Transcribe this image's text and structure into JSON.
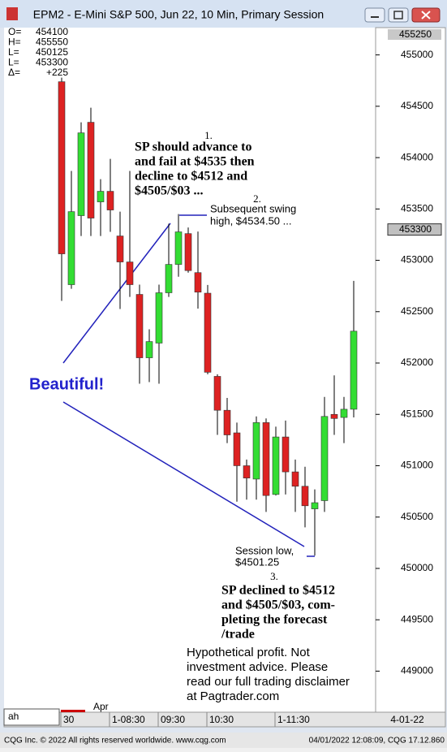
{
  "window": {
    "title": "EPM2 - E-Mini S&P 500, Jun 22, 10 Min, Primary Session"
  },
  "chart_data": {
    "type": "candlestick",
    "categories": [
      "30",
      null,
      null,
      null,
      null,
      "1-08:30",
      null,
      null,
      null,
      null,
      "09:30",
      null,
      null,
      null,
      null,
      "10:30",
      null,
      null,
      null,
      null,
      null,
      null,
      "1-11:30",
      null,
      null,
      null,
      null,
      null,
      null,
      null,
      null
    ],
    "open": [
      454739,
      452763,
      453435,
      454344,
      453569,
      453672,
      453237,
      452984,
      452668,
      452051,
      452194,
      452684,
      452960,
      453260,
      452880,
      452680,
      451870,
      451540,
      451320,
      451000,
      450870,
      451420,
      450720,
      451280,
      450940,
      450800,
      450580,
      450660,
      451500,
      451470,
      451550
    ],
    "high": [
      454779,
      453870,
      454344,
      454486,
      453790,
      453988,
      453474,
      453870,
      452763,
      452328,
      452763,
      453356,
      453450,
      453320,
      453280,
      452760,
      451890,
      451660,
      451420,
      451060,
      451480,
      451460,
      451380,
      451440,
      451060,
      450990,
      450770,
      451670,
      451880,
      451670,
      452800
    ],
    "low": [
      452605,
      452723,
      453237,
      453237,
      453237,
      453277,
      452526,
      452644,
      451798,
      451814,
      451798,
      452644,
      452840,
      452880,
      452530,
      451890,
      451300,
      451220,
      450650,
      450670,
      450670,
      450550,
      450710,
      450720,
      450550,
      450400,
      450125,
      450550,
      451300,
      451220,
      451470
    ],
    "close": [
      453063,
      453474,
      454241,
      453411,
      453672,
      453490,
      452984,
      452763,
      452051,
      452209,
      452684,
      452960,
      453277,
      452900,
      452690,
      451910,
      451540,
      451300,
      451000,
      450880,
      451420,
      450710,
      451280,
      450940,
      450800,
      450610,
      450640,
      451480,
      451460,
      451550,
      452310
    ],
    "up_color": "#33dd33",
    "down_color": "#dd2222",
    "ylim": [
      448600,
      455250
    ],
    "yticks": [
      449000,
      449500,
      450000,
      450500,
      451000,
      451500,
      452000,
      452500,
      453000,
      453500,
      454000,
      454500,
      455000
    ],
    "y_top_label": 455250,
    "last_price": 453300,
    "x_secondary_label": "Apr",
    "x_end_label": "4-01-22",
    "readout": [
      [
        "O=",
        "454100"
      ],
      [
        "H=",
        "455550"
      ],
      [
        "L=",
        "450125"
      ],
      [
        "L=",
        "453300"
      ],
      [
        "Δ=",
        "+225"
      ]
    ],
    "annotations": [
      [
        "1."
      ],
      [
        "SP should advance to",
        "and fail at $4535 then",
        "decline to $4512 and",
        "$4505/$03 ..."
      ],
      [
        "2."
      ],
      [
        "Subsequent swing",
        "high, $4534.50 ..."
      ],
      [
        "Beautiful!"
      ],
      [
        "Session low,",
        "$4501.25"
      ],
      [
        "3."
      ],
      [
        "SP declined to $4512",
        "and $4505/$03, com-",
        "pleting the forecast",
        "/trade"
      ],
      [
        "Hypothetical profit. Not",
        "investment advice. Please",
        "read our full trading disclaimer",
        "at Pagtrader.com"
      ]
    ]
  },
  "input": "ah",
  "footer": {
    "left": "CQG Inc. © 2022 All rights reserved worldwide. www.cqg.com",
    "right": "04/01/2022 12:08:09, CQG 17.12.860"
  }
}
